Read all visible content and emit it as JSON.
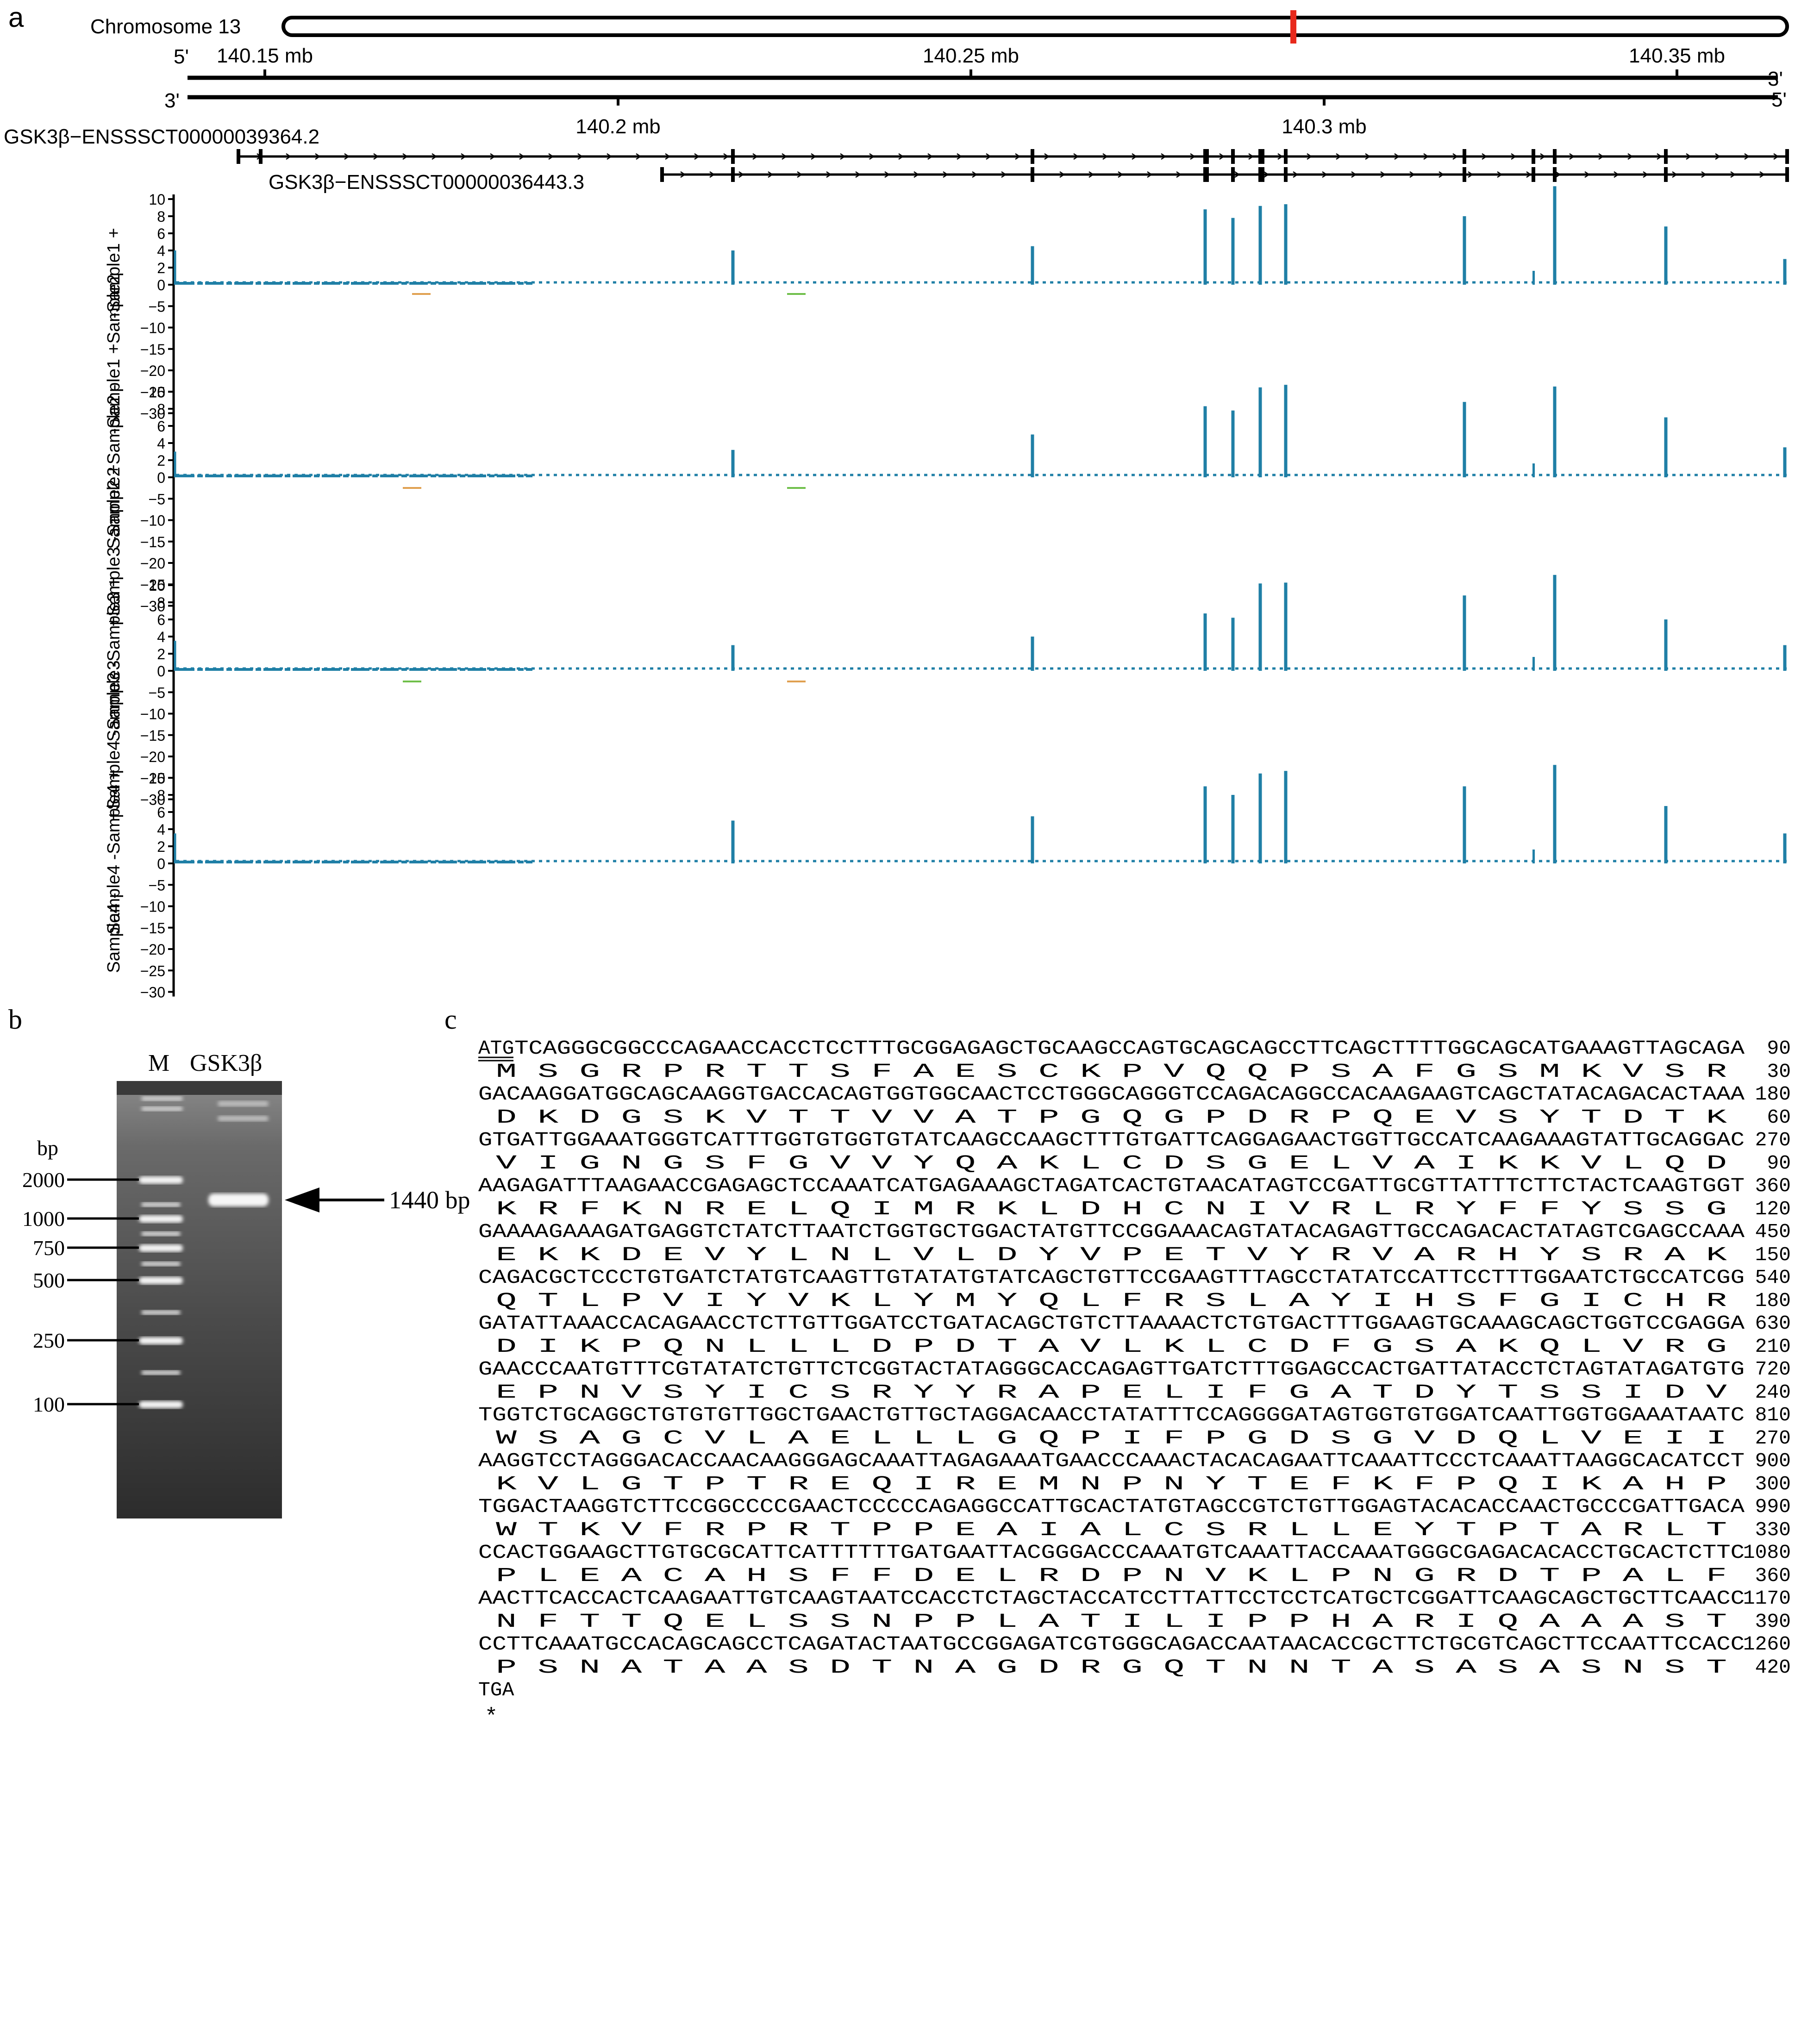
{
  "colors": {
    "coverage": "#1f7fa6",
    "highlight": "#e8291c",
    "noise_green": "#6fbf4a",
    "noise_orange": "#e0a050"
  },
  "panel_a": {
    "label": "a",
    "chromosome_label": "Chromosome 13",
    "strand_top": {
      "left": "5'",
      "right": "3'"
    },
    "strand_bottom": {
      "left": "3'",
      "right": "5'"
    },
    "top_ticks": [
      "140.15 mb",
      "140.25 mb",
      "140.35 mb"
    ],
    "bottom_ticks": [
      "140.2 mb",
      "140.3 mb"
    ],
    "transcripts": [
      "GSK3β−ENSSSCT00000039364.2",
      "GSK3β−ENSSSCT00000036443.3"
    ],
    "pos_ticks": [
      "10",
      "8",
      "6",
      "4",
      "2",
      "0"
    ],
    "neg_ticks": [
      "−5",
      "−10",
      "−15",
      "−20",
      "−25",
      "−30"
    ],
    "pos_labels": [
      "-Sample1 +",
      "+Sample2 -Sample1",
      "+Sample3 -Sample2",
      "+Sample4 -Sample3"
    ],
    "neg_labels": [
      "+Sample2 -Sample1",
      "+Sample3 -Sample2",
      "+Sample4 -Sample3",
      "Sample4 -"
    ],
    "track_labels": [
      "-Sample1 +",
      "-Sample1 +Sample2",
      "Sample2 +Sample2 -",
      "+Sample3 -Sample2",
      "Sample3 -Sample3 +",
      "+Sample4 -Sample3",
      "Sample4 -Sample4 +",
      "Sample4 -"
    ],
    "coverage_peaks": [
      [
        4.0,
        4.0,
        4.5,
        8.8,
        7.8,
        9.2,
        9.4,
        8.0,
        11.5,
        6.8,
        3.0
      ],
      [
        3.0,
        3.2,
        5.0,
        8.3,
        7.8,
        10.5,
        10.8,
        8.8,
        10.6,
        7.0,
        3.5
      ],
      [
        3.5,
        3.0,
        4.0,
        6.7,
        6.2,
        10.2,
        10.3,
        8.8,
        11.2,
        6.0,
        3.0
      ],
      [
        3.5,
        5.0,
        5.5,
        9.0,
        8.0,
        10.5,
        10.8,
        9.0,
        11.5,
        6.7,
        3.5
      ]
    ]
  },
  "panel_b": {
    "label": "b",
    "lanes": [
      "M",
      "GSK3β"
    ],
    "unit": "bp",
    "markers": [
      "2000",
      "1000",
      "750",
      "500",
      "250",
      "100"
    ],
    "band_label": "1440 bp"
  },
  "panel_c": {
    "label": "c",
    "start_codon": "ATG",
    "stop_marker": "*",
    "rows": [
      {
        "dna": "TCAGGGCGGCCCAGAACCACCTCCTTTGCGGAGAGCTGCAAGCCAGTGCAGCAGCCTTCAGCTTTTGGCAGCATGAAAGTTAGCAGA",
        "aa": "M  S  G  R  P  R  T  T  S  F  A  E  S  C  K  P  V  Q  Q  P  S  A  F  G  S  M  K  V  S  R",
        "nt": "90",
        "aan": "30"
      },
      {
        "dna": "GACAAGGATGGCAGCAAGGTGACCACAGTGGTGGCAACTCCTGGGCAGGGTCCAGACAGGCCACAAGAAGTCAGCTATACAGACACTAAA",
        "aa": "D  K  D  G  S  K  V  T  T  V  V  A  T  P  G  Q  G  P  D  R  P  Q  E  V  S  Y  T  D  T  K",
        "nt": "180",
        "aan": "60"
      },
      {
        "dna": "GTGATTGGAAATGGGTCATTTGGTGTGGTGTATCAAGCCAAGCTTTGTGATTCAGGAGAACTGGTTGCCATCAAGAAAGTATTGCAGGAC",
        "aa": "V  I  G  N  G  S  F  G  V  V  Y  Q  A  K  L  C  D  S  G  E  L  V  A  I  K  K  V  L  Q  D",
        "nt": "270",
        "aan": "90"
      },
      {
        "dna": "AAGAGATTTAAGAACCGAGAGCTCCAAATCATGAGAAAGCTAGATCACTGTAACATAGTCCGATTGCGTTATTTCTTCTACTCAAGTGGT",
        "aa": "K  R  F  K  N  R  E  L  Q  I  M  R  K  L  D  H  C  N  I  V  R  L  R  Y  F  F  Y  S  S  G",
        "nt": "360",
        "aan": "120"
      },
      {
        "dna": "GAAAAGAAAGATGAGGTCTATCTTAATCTGGTGCTGGACTATGTTCCGGAAACAGTATACAGAGTTGCCAGACACTATAGTCGAGCCAAA",
        "aa": "E  K  K  D  E  V  Y  L  N  L  V  L  D  Y  V  P  E  T  V  Y  R  V  A  R  H  Y  S  R  A  K",
        "nt": "450",
        "aan": "150"
      },
      {
        "dna": "CAGACGCTCCCTGTGATCTATGTCAAGTTGTATATGTATCAGCTGTTCCGAAGTTTAGCCTATATCCATTCCTTTGGAATCTGCCATCGG",
        "aa": "Q  T  L  P  V  I  Y  V  K  L  Y  M  Y  Q  L  F  R  S  L  A  Y  I  H  S  F  G  I  C  H  R",
        "nt": "540",
        "aan": "180"
      },
      {
        "dna": "GATATTAAACCACAGAACCTCTTGTTGGATCCTGATACAGCTGTCTTAAAACTCTGTGACTTTGGAAGTGCAAAGCAGCTGGTCCGAGGA",
        "aa": "D  I  K  P  Q  N  L  L  L  D  P  D  T  A  V  L  K  L  C  D  F  G  S  A  K  Q  L  V  R  G",
        "nt": "630",
        "aan": "210"
      },
      {
        "dna": "GAACCCAATGTTTCGTATATCTGTTCTCGGTACTATAGGGCACCAGAGTTGATCTTTGGAGCCACTGATTATACCTCTAGTATAGATGTG",
        "aa": "E  P  N  V  S  Y  I  C  S  R  Y  Y  R  A  P  E  L  I  F  G  A  T  D  Y  T  S  S  I  D  V",
        "nt": "720",
        "aan": "240"
      },
      {
        "dna": "TGGTCTGCAGGCTGTGTGTTGGCTGAACTGTTGCTAGGACAACCTATATTTCCAGGGGATAGTGGTGTGGATCAATTGGTGGAAATAATC",
        "aa": "W  S  A  G  C  V  L  A  E  L  L  L  G  Q  P  I  F  P  G  D  S  G  V  D  Q  L  V  E  I  I",
        "nt": "810",
        "aan": "270"
      },
      {
        "dna": "AAGGTCCTAGGGACACCAACAAGGGAGCAAATTAGAGAAATGAACCCAAACTACACAGAATTCAAATTCCCTCAAATTAAGGCACATCCT",
        "aa": "K  V  L  G  T  P  T  R  E  Q  I  R  E  M  N  P  N  Y  T  E  F  K  F  P  Q  I  K  A  H  P",
        "nt": "900",
        "aan": "300"
      },
      {
        "dna": "TGGACTAAGGTCTTCCGGCCCCGAACTCCCCCAGAGGCCATTGCACTATGTAGCCGTCTGTTGGAGTACACACCAACTGCCCGATTGACA",
        "aa": "W  T  K  V  F  R  P  R  T  P  P  E  A  I  A  L  C  S  R  L  L  E  Y  T  P  T  A  R  L  T",
        "nt": "990",
        "aan": "330"
      },
      {
        "dna": "CCACTGGAAGCTTGTGCGCATTCATTTTTTGATGAATTACGGGACCCAAATGTCAAATTACCAAATGGGCGAGACACACCTGCACTCTTC",
        "aa": "P  L  E  A  C  A  H  S  F  F  D  E  L  R  D  P  N  V  K  L  P  N  G  R  D  T  P  A  L  F",
        "nt": "1080",
        "aan": "360"
      },
      {
        "dna": "AACTTCACCACTCAAGAATTGTCAAGTAATCCACCTCTAGCTACCATCCTTATTCCTCCTCATGCTCGGATTCAAGCAGCTGCTTCAACC",
        "aa": "N  F  T  T  Q  E  L  S  S  N  P  P  L  A  T  I  L  I  P  P  H  A  R  I  Q  A  A  A  S  T",
        "nt": "1170",
        "aan": "390"
      },
      {
        "dna": "CCTTCAAATGCCACAGCAGCCTCAGATACTAATGCCGGAGATCGTGGGCAGACCAATAACACCGCTTCTGCGTCAGCTTCCAATTCCACC",
        "aa": "P  S  N  A  T  A  A  S  D  T  N  A  G  D  R  G  Q  T  N  N  T  A  S  A  S  A  S  N  S  T",
        "nt": "1260",
        "aan": "420"
      },
      {
        "dna": "TGA",
        "aa": "",
        "nt": "",
        "aan": ""
      }
    ]
  }
}
